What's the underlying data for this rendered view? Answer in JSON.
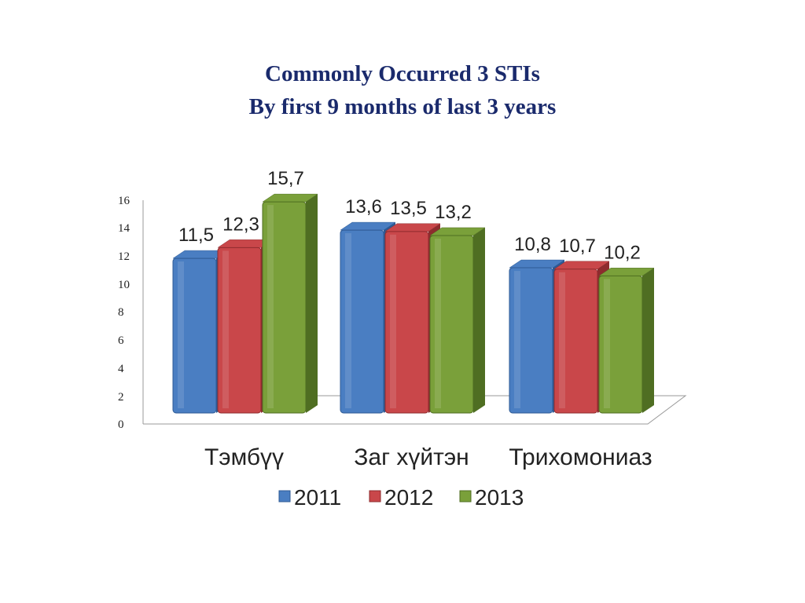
{
  "slide": {
    "title_line1": "Commonly Occurred 3 STIs",
    "title_line2": "By first 9 months of last 3 years"
  },
  "chart_data": {
    "type": "bar",
    "categories": [
      "Тэмбүү",
      "Заг хүйтэн",
      "Трихомониаз"
    ],
    "series": [
      {
        "name": "2011",
        "values": [
          11.5,
          13.6,
          10.8
        ],
        "value_labels": [
          "11,5",
          "13,6",
          "10,8"
        ],
        "color": "#4a7ec2",
        "side": "#2d5a94"
      },
      {
        "name": "2012",
        "values": [
          12.3,
          13.5,
          10.7
        ],
        "value_labels": [
          "12,3",
          "13,5",
          "10,7"
        ],
        "color": "#c9474a",
        "side": "#8e2b2e"
      },
      {
        "name": "2013",
        "values": [
          15.7,
          13.2,
          10.2
        ],
        "value_labels": [
          "15,7",
          "13,2",
          "10,2"
        ],
        "color": "#7aa03a",
        "side": "#4f6e22"
      }
    ],
    "yticks": [
      "0",
      "2",
      "4",
      "6",
      "8",
      "10",
      "12",
      "14",
      "16"
    ],
    "ylim": [
      0,
      16
    ],
    "legend_position": "bottom",
    "grid": false,
    "style": "3d-clustered-column"
  }
}
